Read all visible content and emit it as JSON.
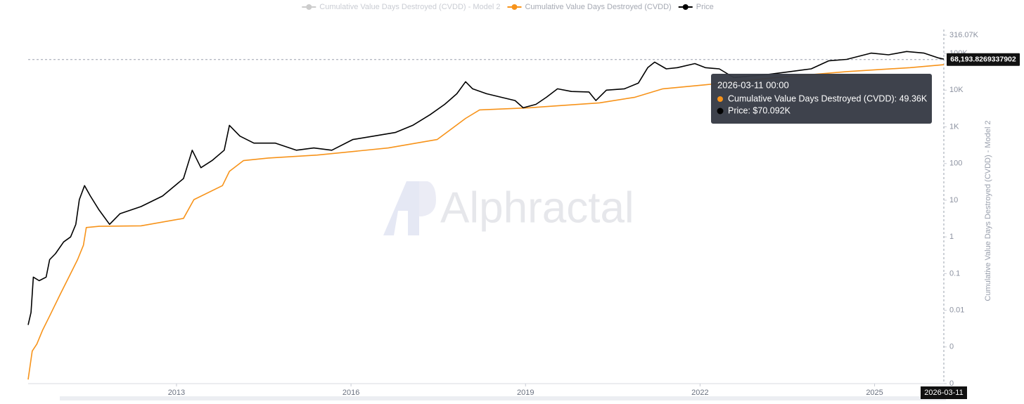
{
  "chart_data": {
    "type": "line",
    "log_scale": true,
    "watermark": "Alphractal",
    "y_axis_label": "Cumulative Value Days Destroyed (CVDD) - Model 2",
    "xlim": [
      2010.45,
      2026.19
    ],
    "xticks": [
      2013,
      2016,
      2019,
      2022,
      2025
    ],
    "ylim": [
      0.0001,
      316070
    ],
    "yticks": [
      {
        "value": 316070,
        "label": "316.07K"
      },
      {
        "value": 100000,
        "label": "100K"
      },
      {
        "value": 10000,
        "label": "10K"
      },
      {
        "value": 1000,
        "label": "1K"
      },
      100,
      10,
      1,
      0.1,
      0.01,
      {
        "value": 0.001,
        "label": "0"
      },
      {
        "value": 0.0001,
        "label": "0"
      }
    ],
    "series": [
      {
        "name": "Cumulative Value Days Destroyed (CVDD) - Model 2",
        "color": "#cccccc",
        "visible": false,
        "x": [],
        "values": []
      },
      {
        "name": "Cumulative Value Days Destroyed (CVDD)",
        "color": "#f7931a",
        "visible": true,
        "x": [
          2010.45,
          2010.52,
          2010.6,
          2010.7,
          2010.82,
          2011.0,
          2011.18,
          2011.3,
          2011.4,
          2011.45,
          2011.67,
          2012.39,
          2013.12,
          2013.3,
          2013.79,
          2013.91,
          2014.15,
          2014.58,
          2015.42,
          2016.64,
          2017.48,
          2017.97,
          2018.21,
          2019.06,
          2020.27,
          2020.88,
          2021.36,
          2022.09,
          2023.3,
          2024.52,
          2025.61,
          2026.19
        ],
        "values": [
          0.00013,
          0.00077,
          0.0012,
          0.0029,
          0.007,
          0.027,
          0.1,
          0.24,
          0.59,
          1.8,
          1.94,
          2.0,
          3.2,
          10.4,
          25,
          61,
          120,
          141,
          170,
          265,
          450,
          1700,
          2900,
          3300,
          4500,
          6400,
          10900,
          14000,
          22000,
          32000,
          41000,
          49360
        ]
      },
      {
        "name": "Price",
        "color": "#000000",
        "visible": true,
        "x": [
          2010.45,
          2010.5,
          2010.54,
          2010.64,
          2010.76,
          2010.82,
          2010.92,
          2011.06,
          2011.18,
          2011.27,
          2011.33,
          2011.42,
          2011.52,
          2011.67,
          2011.85,
          2012.03,
          2012.39,
          2012.76,
          2013.12,
          2013.27,
          2013.42,
          2013.61,
          2013.82,
          2013.91,
          2014.09,
          2014.33,
          2014.7,
          2015.06,
          2015.36,
          2015.67,
          2016.03,
          2016.39,
          2016.76,
          2017.06,
          2017.36,
          2017.61,
          2017.82,
          2017.97,
          2018.09,
          2018.33,
          2018.58,
          2018.82,
          2018.96,
          2019.18,
          2019.36,
          2019.55,
          2019.79,
          2020.09,
          2020.21,
          2020.39,
          2020.7,
          2020.94,
          2021.1,
          2021.22,
          2021.42,
          2021.61,
          2021.91,
          2022.09,
          2022.33,
          2022.58,
          2022.82,
          2023.18,
          2023.55,
          2023.91,
          2024.21,
          2024.52,
          2024.94,
          2025.24,
          2025.55,
          2025.85,
          2026.09,
          2026.19
        ],
        "values": [
          0.004,
          0.0087,
          0.08,
          0.064,
          0.08,
          0.24,
          0.35,
          0.73,
          1,
          2.2,
          10.4,
          25,
          13,
          5.4,
          2.2,
          4.3,
          6.7,
          13,
          39,
          230,
          77,
          120,
          230,
          1100,
          560,
          360,
          360,
          230,
          265,
          230,
          450,
          560,
          700,
          1100,
          2150,
          4100,
          8000,
          17000,
          10900,
          8000,
          6400,
          5200,
          3300,
          4100,
          6400,
          10900,
          9200,
          8900,
          5200,
          10000,
          10900,
          15600,
          41000,
          58000,
          38000,
          41000,
          53000,
          41000,
          38000,
          22000,
          24000,
          27000,
          32000,
          38000,
          63000,
          69000,
          102000,
          92000,
          113000,
          102000,
          76000,
          70092
        ]
      }
    ],
    "crosshair": {
      "value": 68193.8269337902,
      "label": "68,193.8269337902",
      "x": 2026.19,
      "x_label": "2026-03-11"
    },
    "tooltip": {
      "title": "2026-03-11 00:00",
      "rows": [
        {
          "text": "Cumulative Value Days Destroyed (CVDD): 49.36K",
          "color": "#f7931a"
        },
        {
          "text": "Price: $70.092K",
          "color": "#000000"
        }
      ]
    }
  }
}
